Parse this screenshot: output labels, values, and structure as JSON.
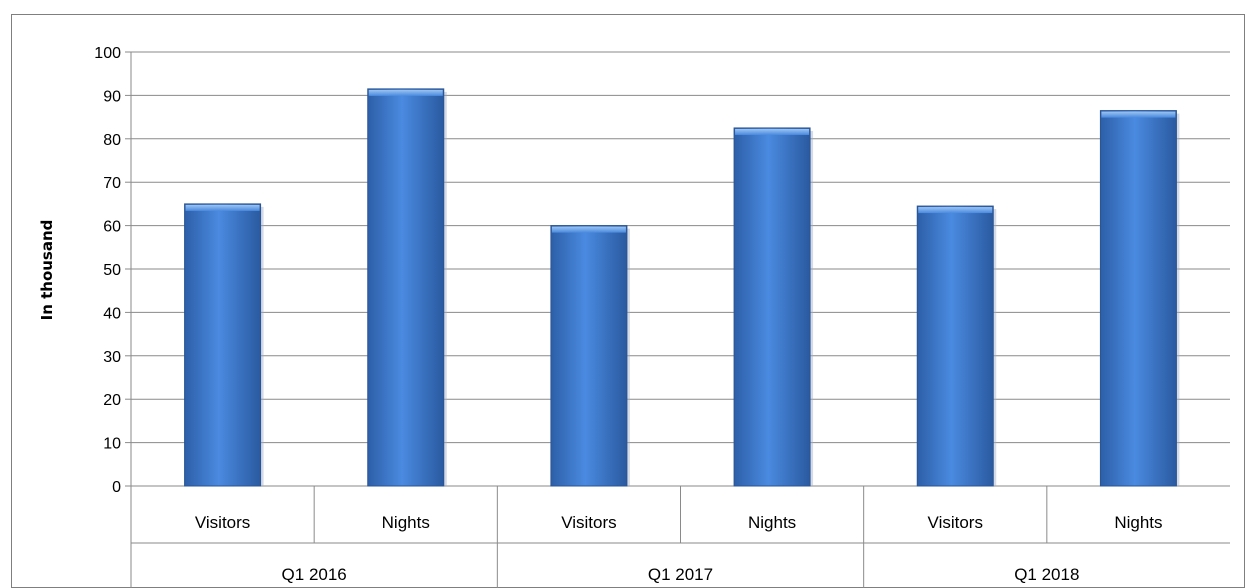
{
  "chart_data": {
    "type": "bar",
    "title": "",
    "xlabel": "",
    "ylabel": "In thousand",
    "ylim": [
      0,
      100
    ],
    "yticks": [
      0,
      10,
      20,
      30,
      40,
      50,
      60,
      70,
      80,
      90,
      100
    ],
    "grid": true,
    "legend": "none",
    "bar_color": "#3f7fd0",
    "groups": [
      "Q1 2016",
      "Q1 2017",
      "Q1 2018"
    ],
    "categories": [
      "Visitors",
      "Nights",
      "Visitors",
      "Nights",
      "Visitors",
      "Nights"
    ],
    "values": [
      65,
      91.5,
      60,
      82.5,
      64.5,
      86.5
    ]
  }
}
